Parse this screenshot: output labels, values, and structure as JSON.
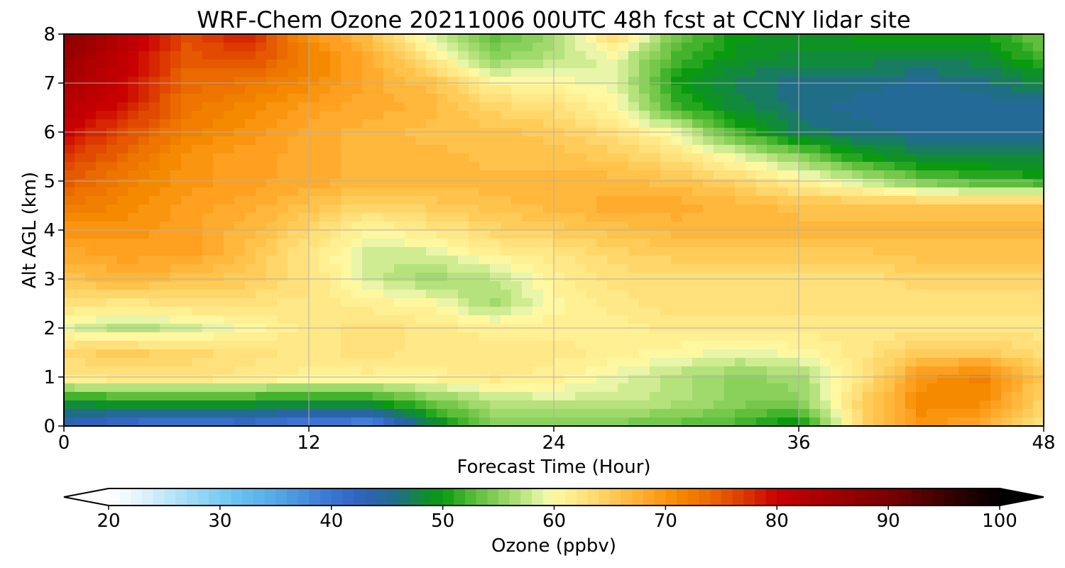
{
  "chart_data": {
    "type": "heatmap",
    "title": "WRF-Chem Ozone  20211006 00UTC 48h fcst at CCNY lidar site",
    "xlabel": "Forecast Time (Hour)",
    "ylabel": "Alt AGL (km)",
    "xlim": [
      0,
      48
    ],
    "ylim": [
      0,
      8
    ],
    "x_ticks": [
      "0",
      "12",
      "24",
      "36",
      "48"
    ],
    "y_ticks": [
      "0",
      "1",
      "2",
      "3",
      "4",
      "5",
      "6",
      "7",
      "8"
    ],
    "grid": true,
    "x_hours": [
      0,
      3,
      6,
      9,
      12,
      15,
      18,
      21,
      24,
      27,
      30,
      33,
      36,
      39,
      42,
      45,
      48
    ],
    "y_km": [
      0,
      0.5,
      1,
      1.5,
      2,
      2.5,
      3,
      3.5,
      4,
      4.5,
      5,
      5.5,
      6,
      6.5,
      7,
      7.5,
      8
    ],
    "ozone_ppbv": [
      [
        43,
        40,
        39,
        40,
        38,
        37,
        47,
        55,
        54,
        54,
        53,
        52,
        48,
        64,
        70,
        68,
        62
      ],
      [
        49,
        50,
        50,
        50,
        49,
        50,
        54,
        57,
        58,
        58,
        57,
        55,
        55,
        64,
        71,
        71,
        64
      ],
      [
        62,
        63,
        63,
        62,
        61,
        61,
        61,
        62,
        61,
        59,
        57,
        55,
        56,
        62,
        70,
        72,
        65
      ],
      [
        64,
        65,
        64,
        63,
        62,
        63,
        62,
        62,
        62,
        61,
        60,
        59,
        60,
        62,
        65,
        65,
        63
      ],
      [
        59,
        57,
        58,
        60,
        62,
        63,
        62,
        61,
        61,
        61,
        62,
        62,
        62,
        62,
        62,
        62,
        62
      ],
      [
        63,
        62,
        63,
        63,
        62,
        61,
        60,
        56,
        60,
        62,
        63,
        63,
        63,
        63,
        63,
        63,
        63
      ],
      [
        66,
        67,
        66,
        65,
        63,
        58,
        56,
        57,
        61,
        63,
        63,
        63,
        63,
        63,
        64,
        64,
        64
      ],
      [
        68,
        69,
        69,
        66,
        62,
        58,
        58,
        61,
        62,
        64,
        65,
        65,
        65,
        65,
        66,
        66,
        66
      ],
      [
        70,
        70,
        69,
        67,
        64,
        60,
        62,
        64,
        65,
        66,
        67,
        67,
        67,
        67,
        67,
        67,
        67
      ],
      [
        73,
        71,
        69,
        68,
        66,
        64,
        65,
        66,
        67,
        68,
        68,
        67,
        66,
        66,
        66,
        66,
        66
      ],
      [
        75,
        72,
        70,
        69,
        68,
        67,
        67,
        67,
        67,
        67,
        66,
        64,
        61,
        58,
        54,
        52,
        51
      ],
      [
        77,
        74,
        70,
        69,
        68,
        67,
        67,
        66,
        66,
        65,
        63,
        59,
        55,
        50,
        48,
        48,
        48
      ],
      [
        80,
        76,
        72,
        70,
        68,
        67,
        66,
        66,
        65,
        63,
        59,
        52,
        47,
        46,
        45,
        45,
        45
      ],
      [
        82,
        79,
        73,
        71,
        69,
        68,
        67,
        64,
        63,
        60,
        52,
        48,
        46,
        45,
        45,
        45,
        45
      ],
      [
        84,
        80,
        74,
        73,
        71,
        68,
        66,
        61,
        60,
        59,
        50,
        47,
        46,
        46,
        45,
        46,
        48
      ],
      [
        86,
        81,
        75,
        76,
        72,
        68,
        62,
        55,
        57,
        59,
        52,
        49,
        48,
        48,
        48,
        48,
        52
      ],
      [
        88,
        82,
        76,
        79,
        70,
        66,
        58,
        53,
        56,
        64,
        54,
        50,
        49,
        50,
        50,
        50,
        54
      ]
    ]
  },
  "colorbar": {
    "label": "Ozone  (ppbv)",
    "min": 20,
    "max": 100,
    "ticks": [
      "20",
      "30",
      "40",
      "50",
      "60",
      "70",
      "80",
      "90",
      "100"
    ],
    "extend": "both",
    "stops": [
      {
        "v": 20,
        "c": "#ffffff"
      },
      {
        "v": 23,
        "c": "#e0f3fc"
      },
      {
        "v": 27,
        "c": "#a6dcf6"
      },
      {
        "v": 31,
        "c": "#6ec6f2"
      },
      {
        "v": 35,
        "c": "#55a9e6"
      },
      {
        "v": 40,
        "c": "#3b74d4"
      },
      {
        "v": 43,
        "c": "#2f62b8"
      },
      {
        "v": 46,
        "c": "#1f6e86"
      },
      {
        "v": 48,
        "c": "#118a3c"
      },
      {
        "v": 50,
        "c": "#0a9a10"
      },
      {
        "v": 53,
        "c": "#5fbf3c"
      },
      {
        "v": 57,
        "c": "#b5e27c"
      },
      {
        "v": 59,
        "c": "#e9f5a8"
      },
      {
        "v": 60,
        "c": "#fff8a0"
      },
      {
        "v": 63,
        "c": "#ffe07a"
      },
      {
        "v": 66,
        "c": "#ffc24a"
      },
      {
        "v": 69,
        "c": "#ffa020"
      },
      {
        "v": 71,
        "c": "#f58a00"
      },
      {
        "v": 74,
        "c": "#ea6a00"
      },
      {
        "v": 77,
        "c": "#dc3a00"
      },
      {
        "v": 80,
        "c": "#c80000"
      },
      {
        "v": 85,
        "c": "#a00000"
      },
      {
        "v": 90,
        "c": "#7a0000"
      },
      {
        "v": 95,
        "c": "#3c0000"
      },
      {
        "v": 100,
        "c": "#000000"
      }
    ]
  }
}
